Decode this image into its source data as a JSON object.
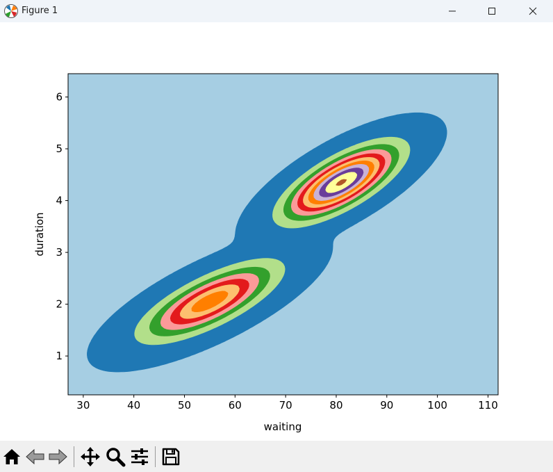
{
  "window": {
    "title": "Figure 1",
    "icon": "matplotlib-logo-icon",
    "controls": [
      "minimize-icon",
      "maximize-icon",
      "close-icon"
    ]
  },
  "toolbar": {
    "buttons": [
      "home-icon",
      "back-arrow-icon",
      "forward-arrow-icon",
      "pan-icon",
      "zoom-icon",
      "configure-subplots-icon",
      "save-icon"
    ]
  },
  "chart_data": {
    "type": "kde-contourf",
    "xlabel": "waiting",
    "ylabel": "duration",
    "xlim": [
      27,
      112
    ],
    "ylim": [
      0.25,
      6.45
    ],
    "xticks": [
      30,
      40,
      50,
      60,
      70,
      80,
      90,
      100,
      110
    ],
    "yticks": [
      1,
      2,
      3,
      4,
      5,
      6
    ],
    "colormap": "Paired",
    "level_colors": [
      "#a6cee3",
      "#1f78b4",
      "#b2df8a",
      "#33a02c",
      "#fb9a99",
      "#e31a1c",
      "#fdbf6f",
      "#ff7f00",
      "#cab2d6",
      "#6a3d9a",
      "#ffff99",
      "#b15928"
    ],
    "grid": false,
    "legend": "none",
    "density_peaks": [
      {
        "waiting": 55,
        "duration": 2.05
      },
      {
        "waiting": 81,
        "duration": 4.35
      }
    ]
  }
}
